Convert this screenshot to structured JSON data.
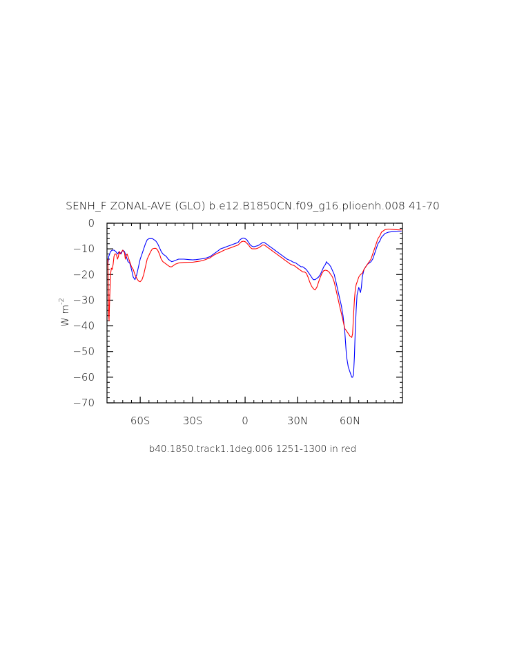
{
  "chart_data": {
    "type": "line",
    "title": "SENH_F ZONAL-AVE (GLO) b.e12.B1850CN.f09_g16.plioenh.008 ‌41-70‌",
    "ylabel_base": "W m",
    "ylabel_exp": "-2",
    "caption": "b40.1850.track1.1deg.006 ‌1251-1300‌ in red",
    "xlim": [
      -79,
      90
    ],
    "ylim": [
      -70,
      0
    ],
    "x_ticks": [
      {
        "value": -60,
        "label": "60S"
      },
      {
        "value": -30,
        "label": "30S"
      },
      {
        "value": 0,
        "label": "0"
      },
      {
        "value": 30,
        "label": "30N"
      },
      {
        "value": 60,
        "label": "60N"
      }
    ],
    "y_ticks": [
      {
        "value": 0,
        "label": "0"
      },
      {
        "value": -10,
        "label": "-10"
      },
      {
        "value": -20,
        "label": "-20"
      },
      {
        "value": -30,
        "label": "-30"
      },
      {
        "value": -40,
        "label": "-40"
      },
      {
        "value": -50,
        "label": "-50"
      },
      {
        "value": -60,
        "label": "-60"
      },
      {
        "value": -70,
        "label": "-70"
      }
    ],
    "series": [
      {
        "color": "#0000ff",
        "points": [
          [
            -78.5,
            -16
          ],
          [
            -78,
            -13
          ],
          [
            -77,
            -11
          ],
          [
            -76,
            -10.5
          ],
          [
            -75,
            -10.5
          ],
          [
            -74,
            -11
          ],
          [
            -73,
            -12
          ],
          [
            -72,
            -11
          ],
          [
            -71,
            -12
          ],
          [
            -70,
            -10.5
          ],
          [
            -69,
            -11
          ],
          [
            -68,
            -13
          ],
          [
            -67,
            -15
          ],
          [
            -66,
            -15.5
          ],
          [
            -65,
            -18
          ],
          [
            -64,
            -21
          ],
          [
            -63,
            -22
          ],
          [
            -62,
            -20
          ],
          [
            -61,
            -17
          ],
          [
            -60,
            -14
          ],
          [
            -59,
            -12
          ],
          [
            -58,
            -10
          ],
          [
            -57,
            -8
          ],
          [
            -56,
            -6.5
          ],
          [
            -55,
            -6
          ],
          [
            -54,
            -6
          ],
          [
            -53,
            -6
          ],
          [
            -52,
            -6.5
          ],
          [
            -51,
            -7
          ],
          [
            -50,
            -8
          ],
          [
            -49,
            -9.5
          ],
          [
            -48,
            -11
          ],
          [
            -47,
            -12
          ],
          [
            -46,
            -12.5
          ],
          [
            -45,
            -13
          ],
          [
            -44,
            -14
          ],
          [
            -43,
            -14.5
          ],
          [
            -42,
            -15
          ],
          [
            -41,
            -14.8
          ],
          [
            -40,
            -14.5
          ],
          [
            -38,
            -14
          ],
          [
            -35,
            -14
          ],
          [
            -32,
            -14.2
          ],
          [
            -30,
            -14.3
          ],
          [
            -28,
            -14.2
          ],
          [
            -26,
            -14
          ],
          [
            -24,
            -13.8
          ],
          [
            -22,
            -13.5
          ],
          [
            -20,
            -13
          ],
          [
            -18,
            -12
          ],
          [
            -16,
            -11
          ],
          [
            -14,
            -10
          ],
          [
            -12,
            -9.5
          ],
          [
            -10,
            -9
          ],
          [
            -8,
            -8.5
          ],
          [
            -6,
            -8
          ],
          [
            -4,
            -7.5
          ],
          [
            -3,
            -6.5
          ],
          [
            -2,
            -6
          ],
          [
            -1,
            -5.8
          ],
          [
            0,
            -6
          ],
          [
            1,
            -6.5
          ],
          [
            2,
            -7.5
          ],
          [
            3,
            -8.5
          ],
          [
            4,
            -9
          ],
          [
            5,
            -9.2
          ],
          [
            6,
            -9
          ],
          [
            7,
            -8.8
          ],
          [
            8,
            -8.5
          ],
          [
            9,
            -8
          ],
          [
            10,
            -7.5
          ],
          [
            11,
            -7.5
          ],
          [
            12,
            -8
          ],
          [
            13,
            -8.5
          ],
          [
            14,
            -9
          ],
          [
            15,
            -9.5
          ],
          [
            16,
            -10
          ],
          [
            17,
            -10.5
          ],
          [
            18,
            -11
          ],
          [
            19,
            -11.5
          ],
          [
            20,
            -12
          ],
          [
            21,
            -12.5
          ],
          [
            22,
            -13
          ],
          [
            23,
            -13.5
          ],
          [
            24,
            -14
          ],
          [
            25,
            -14.3
          ],
          [
            26,
            -14.5
          ],
          [
            27,
            -15
          ],
          [
            28,
            -15.3
          ],
          [
            29,
            -15.5
          ],
          [
            30,
            -16
          ],
          [
            31,
            -16.5
          ],
          [
            32,
            -17
          ],
          [
            33,
            -17
          ],
          [
            34,
            -17.5
          ],
          [
            35,
            -18
          ],
          [
            36,
            -19
          ],
          [
            37,
            -20
          ],
          [
            38,
            -21
          ],
          [
            39,
            -22
          ],
          [
            40,
            -22
          ],
          [
            41,
            -21.5
          ],
          [
            42,
            -21
          ],
          [
            43,
            -20
          ],
          [
            44,
            -18.5
          ],
          [
            45,
            -17
          ],
          [
            46,
            -16
          ],
          [
            46.5,
            -15
          ],
          [
            47,
            -15.5
          ],
          [
            48,
            -16
          ],
          [
            49,
            -17
          ],
          [
            50,
            -18.5
          ],
          [
            51,
            -20
          ],
          [
            52,
            -23
          ],
          [
            53,
            -26
          ],
          [
            54,
            -29
          ],
          [
            55,
            -32
          ],
          [
            56,
            -36
          ],
          [
            57,
            -42
          ],
          [
            58,
            -52
          ],
          [
            59,
            -56
          ],
          [
            60,
            -58
          ],
          [
            61,
            -60
          ],
          [
            61.5,
            -60
          ],
          [
            62,
            -59
          ],
          [
            62.5,
            -52
          ],
          [
            63,
            -42
          ],
          [
            63.5,
            -34
          ],
          [
            64,
            -28
          ],
          [
            65,
            -25
          ],
          [
            66,
            -27
          ],
          [
            66.5,
            -25
          ],
          [
            67,
            -21
          ],
          [
            68,
            -18
          ],
          [
            69,
            -17
          ],
          [
            70,
            -16
          ],
          [
            71,
            -15.5
          ],
          [
            72,
            -15
          ],
          [
            73,
            -14
          ],
          [
            74,
            -12
          ],
          [
            75,
            -10
          ],
          [
            76,
            -8
          ],
          [
            77,
            -7
          ],
          [
            78,
            -5.5
          ],
          [
            80,
            -4
          ],
          [
            82,
            -3.5
          ],
          [
            84,
            -3.3
          ],
          [
            86,
            -3.2
          ],
          [
            88,
            -3.1
          ],
          [
            89.5,
            -3.1
          ]
        ]
      },
      {
        "color": "#ff0000",
        "points": [
          [
            -78.5,
            -14
          ],
          [
            -78,
            -36
          ],
          [
            -77.8,
            -38
          ],
          [
            -77.5,
            -30
          ],
          [
            -77,
            -20
          ],
          [
            -76.5,
            -17.5
          ],
          [
            -76,
            -18
          ],
          [
            -75.5,
            -16
          ],
          [
            -75,
            -13
          ],
          [
            -74.5,
            -12
          ],
          [
            -74,
            -12
          ],
          [
            -73.5,
            -12.5
          ],
          [
            -73,
            -14
          ],
          [
            -72.5,
            -13
          ],
          [
            -72,
            -11
          ],
          [
            -71.5,
            -12
          ],
          [
            -71,
            -11.5
          ],
          [
            -70,
            -10.5
          ],
          [
            -69.5,
            -11
          ],
          [
            -69,
            -11.5
          ],
          [
            -68.5,
            -14
          ],
          [
            -68,
            -12.5
          ],
          [
            -67.5,
            -12
          ],
          [
            -67,
            -13
          ],
          [
            -66,
            -15
          ],
          [
            -65,
            -17
          ],
          [
            -64,
            -18
          ],
          [
            -63,
            -20
          ],
          [
            -62,
            -21.5
          ],
          [
            -61,
            -22.5
          ],
          [
            -60,
            -22.8
          ],
          [
            -59,
            -22
          ],
          [
            -58,
            -20
          ],
          [
            -57,
            -17
          ],
          [
            -56,
            -14
          ],
          [
            -55,
            -12.5
          ],
          [
            -54,
            -11
          ],
          [
            -53,
            -10
          ],
          [
            -52,
            -9.8
          ],
          [
            -51,
            -9.8
          ],
          [
            -50,
            -10.5
          ],
          [
            -49,
            -12
          ],
          [
            -48,
            -14
          ],
          [
            -47,
            -15
          ],
          [
            -46,
            -15.5
          ],
          [
            -45,
            -16
          ],
          [
            -44,
            -16.5
          ],
          [
            -43,
            -17
          ],
          [
            -42,
            -17
          ],
          [
            -41,
            -16.5
          ],
          [
            -40,
            -16
          ],
          [
            -38,
            -15.5
          ],
          [
            -35,
            -15.3
          ],
          [
            -32,
            -15.2
          ],
          [
            -30,
            -15.2
          ],
          [
            -28,
            -15
          ],
          [
            -26,
            -14.8
          ],
          [
            -24,
            -14.5
          ],
          [
            -22,
            -14
          ],
          [
            -20,
            -13.5
          ],
          [
            -18,
            -12.5
          ],
          [
            -16,
            -11.8
          ],
          [
            -14,
            -11.2
          ],
          [
            -12,
            -10.5
          ],
          [
            -10,
            -10
          ],
          [
            -8,
            -9.5
          ],
          [
            -6,
            -9
          ],
          [
            -4,
            -8.5
          ],
          [
            -3,
            -7.8
          ],
          [
            -2,
            -7.2
          ],
          [
            -1,
            -7
          ],
          [
            0,
            -7.2
          ],
          [
            1,
            -7.8
          ],
          [
            2,
            -8.5
          ],
          [
            3,
            -9.5
          ],
          [
            4,
            -10
          ],
          [
            5,
            -10
          ],
          [
            6,
            -10
          ],
          [
            7,
            -9.8
          ],
          [
            8,
            -9.5
          ],
          [
            9,
            -9
          ],
          [
            10,
            -8.5
          ],
          [
            11,
            -8.5
          ],
          [
            12,
            -9
          ],
          [
            13,
            -9.5
          ],
          [
            14,
            -10
          ],
          [
            15,
            -10.5
          ],
          [
            16,
            -11
          ],
          [
            17,
            -11.5
          ],
          [
            18,
            -12
          ],
          [
            19,
            -12.5
          ],
          [
            20,
            -13
          ],
          [
            21,
            -13.5
          ],
          [
            22,
            -14
          ],
          [
            23,
            -14.5
          ],
          [
            24,
            -15
          ],
          [
            25,
            -15.5
          ],
          [
            26,
            -16
          ],
          [
            27,
            -16.3
          ],
          [
            28,
            -16.5
          ],
          [
            29,
            -17
          ],
          [
            30,
            -17.5
          ],
          [
            31,
            -18
          ],
          [
            32,
            -18.5
          ],
          [
            33,
            -19
          ],
          [
            34,
            -19
          ],
          [
            35,
            -19.5
          ],
          [
            36,
            -21
          ],
          [
            37,
            -23
          ],
          [
            38,
            -24.5
          ],
          [
            39,
            -25.5
          ],
          [
            40,
            -26
          ],
          [
            41,
            -25
          ],
          [
            42,
            -23
          ],
          [
            43,
            -21
          ],
          [
            44,
            -19.5
          ],
          [
            45,
            -18.5
          ],
          [
            46,
            -18.3
          ],
          [
            47,
            -18.5
          ],
          [
            48,
            -19
          ],
          [
            49,
            -20
          ],
          [
            50,
            -21
          ],
          [
            51,
            -23
          ],
          [
            52,
            -26
          ],
          [
            53,
            -29
          ],
          [
            54,
            -32
          ],
          [
            55,
            -35
          ],
          [
            56,
            -38
          ],
          [
            57,
            -41
          ],
          [
            58,
            -42
          ],
          [
            59,
            -43
          ],
          [
            60,
            -44
          ],
          [
            61,
            -44.5
          ],
          [
            61.5,
            -43
          ],
          [
            62,
            -36
          ],
          [
            62.5,
            -30
          ],
          [
            63,
            -26
          ],
          [
            63.5,
            -24
          ],
          [
            64,
            -23
          ],
          [
            65,
            -21
          ],
          [
            66,
            -20
          ],
          [
            67,
            -19.5
          ],
          [
            68,
            -18
          ],
          [
            69,
            -17
          ],
          [
            70,
            -16
          ],
          [
            71,
            -15
          ],
          [
            72,
            -14
          ],
          [
            73,
            -12
          ],
          [
            74,
            -10
          ],
          [
            75,
            -8
          ],
          [
            76,
            -6
          ],
          [
            77,
            -5
          ],
          [
            78,
            -3.5
          ],
          [
            80,
            -2.5
          ],
          [
            82,
            -2.3
          ],
          [
            84,
            -2.4
          ],
          [
            86,
            -2.5
          ],
          [
            88,
            -2.6
          ],
          [
            89.5,
            -2.6
          ]
        ]
      }
    ]
  }
}
